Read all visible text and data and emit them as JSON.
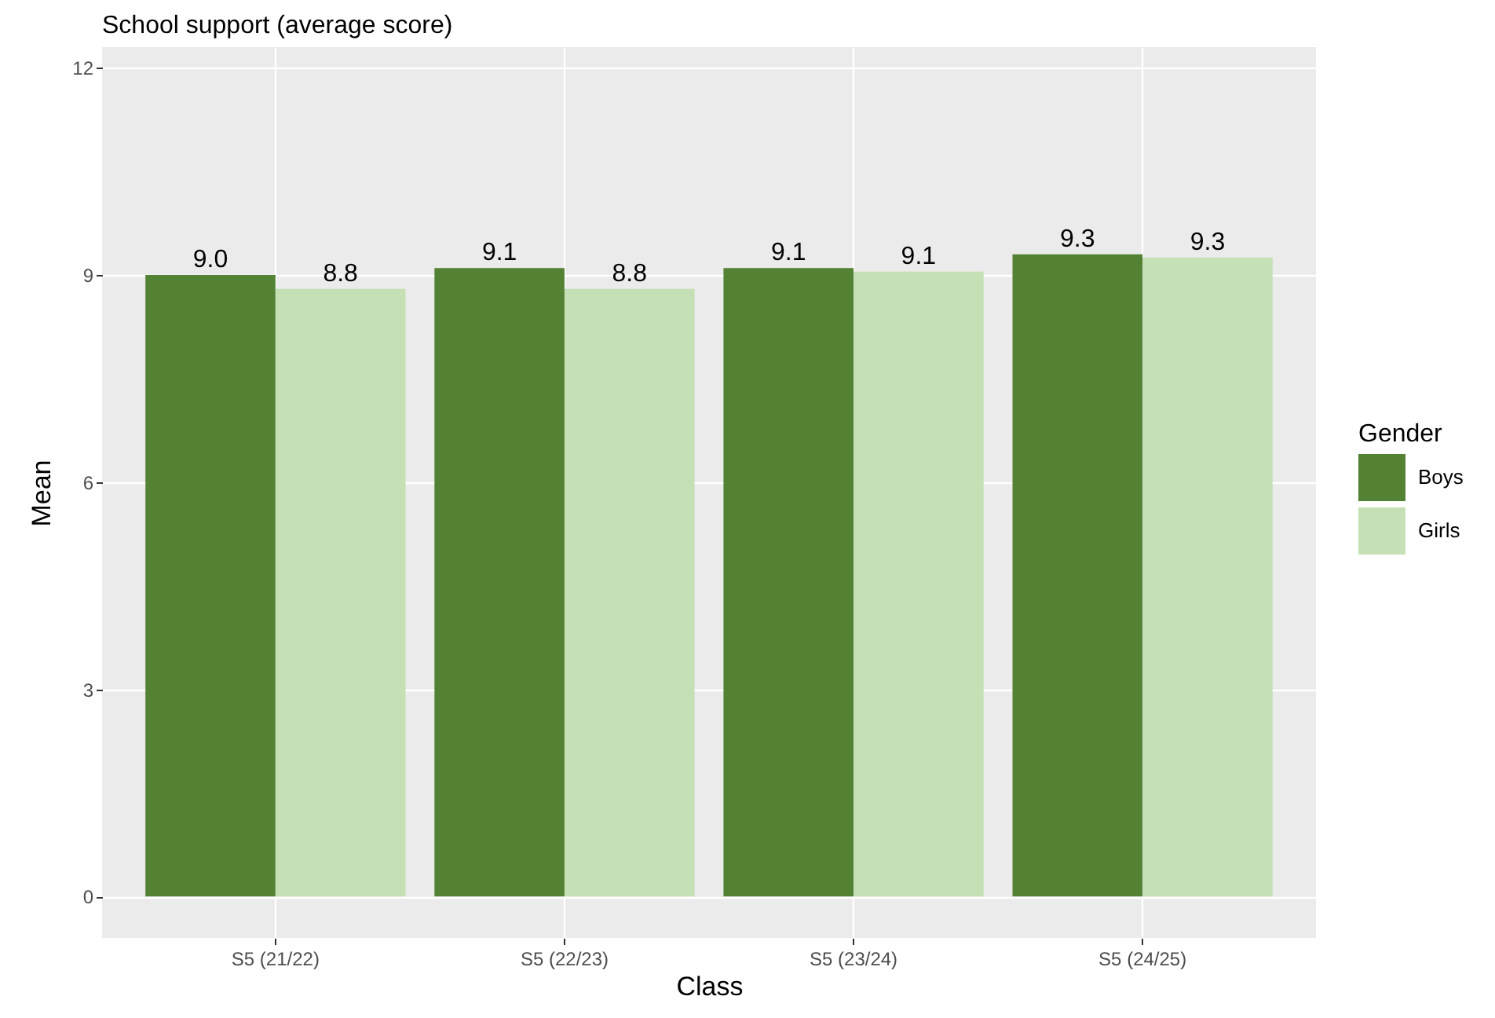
{
  "chart_data": {
    "type": "bar",
    "title": "School support (average score)",
    "xlabel": "Class",
    "ylabel": "Mean",
    "legend_title": "Gender",
    "categories": [
      "S5 (21/22)",
      "S5 (22/23)",
      "S5 (23/24)",
      "S5 (24/25)"
    ],
    "series": [
      {
        "name": "Boys",
        "color": "#548235",
        "values": [
          9.0,
          9.1,
          9.1,
          9.3
        ],
        "value_labels": [
          "9.0",
          "9.1",
          "9.1",
          "9.3"
        ]
      },
      {
        "name": "Girls",
        "color": "#c5e0b4",
        "values": [
          8.8,
          8.8,
          9.05,
          9.25
        ],
        "value_labels": [
          "8.8",
          "8.8",
          "9.1",
          "9.3"
        ]
      }
    ],
    "ylim": [
      -0.6,
      12.3
    ],
    "yticks": [
      0,
      3,
      6,
      9,
      12
    ],
    "grid": true,
    "legend": "right"
  }
}
